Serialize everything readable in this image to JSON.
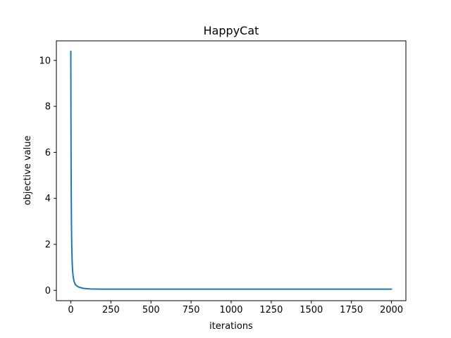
{
  "chart_data": {
    "type": "line",
    "title": "HappyCat",
    "xlabel": "iterations",
    "ylabel": "objective value",
    "xlim": [
      -90,
      2090
    ],
    "ylim": [
      -0.45,
      10.85
    ],
    "xticks": [
      0,
      250,
      500,
      750,
      1000,
      1250,
      1500,
      1750,
      2000
    ],
    "xtick_labels": [
      "0",
      "250",
      "500",
      "750",
      "1000",
      "1250",
      "1500",
      "1750",
      "2000"
    ],
    "yticks": [
      0,
      2,
      4,
      6,
      8,
      10
    ],
    "ytick_labels": [
      "0",
      "2",
      "4",
      "6",
      "8",
      "10"
    ],
    "grid": false,
    "legend": "none",
    "series": [
      {
        "color": "#1f77b4",
        "x": [
          0,
          1,
          2,
          3,
          4,
          5,
          6,
          8,
          10,
          12,
          15,
          20,
          25,
          30,
          40,
          50,
          60,
          75,
          100,
          125,
          150,
          200,
          300,
          500,
          750,
          1000,
          1250,
          1500,
          1750,
          2000
        ],
        "y": [
          10.4,
          7.5,
          5.3,
          4.0,
          3.0,
          2.4,
          1.9,
          1.35,
          1.0,
          0.78,
          0.58,
          0.4,
          0.3,
          0.24,
          0.18,
          0.14,
          0.12,
          0.09,
          0.07,
          0.06,
          0.055,
          0.05,
          0.05,
          0.05,
          0.05,
          0.05,
          0.05,
          0.05,
          0.05,
          0.05
        ]
      }
    ]
  }
}
